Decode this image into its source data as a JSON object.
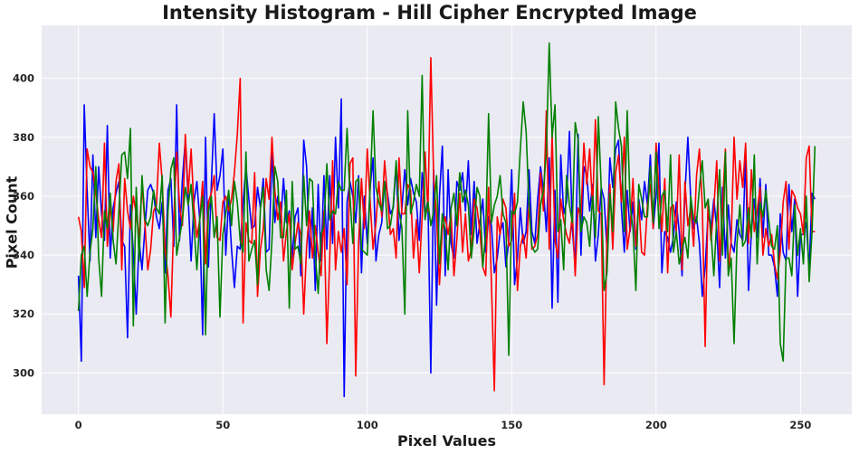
{
  "chart_data": {
    "type": "line",
    "title": "Intensity Histogram - Hill Cipher Encrypted Image",
    "xlabel": "Pixel Values",
    "ylabel": "Pixel Count",
    "xlim": [
      -12.75,
      267.75
    ],
    "ylim": [
      286,
      418
    ],
    "xticks": [
      0,
      50,
      100,
      150,
      200,
      250
    ],
    "yticks": [
      300,
      320,
      340,
      360,
      380,
      400
    ],
    "grid": true,
    "legend": "none",
    "background": "#eaeaf2",
    "x": "integers 0-255",
    "series": [
      {
        "color": "#0000ff",
        "values": [
          333,
          304,
          391,
          362,
          338,
          374,
          346,
          370,
          354,
          345,
          384,
          339,
          356,
          361,
          365,
          345,
          343,
          312,
          357,
          341,
          320,
          345,
          335,
          349,
          362,
          364,
          361,
          353,
          349,
          358,
          334,
          362,
          366,
          343,
          391,
          345,
          366,
          379,
          359,
          338,
          358,
          365,
          352,
          313,
          380,
          336,
          364,
          388,
          362,
          367,
          376,
          340,
          359,
          342,
          329,
          343,
          342,
          358,
          370,
          359,
          349,
          350,
          363,
          356,
          366,
          341,
          342,
          376,
          351,
          360,
          351,
          366,
          351,
          355,
          339,
          353,
          356,
          333,
          379,
          370,
          339,
          356,
          328,
          364,
          338,
          367,
          342,
          367,
          344,
          380,
          356,
          393,
          292,
          358,
          365,
          360,
          351,
          367,
          334,
          360,
          344,
          363,
          373,
          338,
          347,
          351,
          365,
          361,
          354,
          356,
          371,
          345,
          356,
          369,
          357,
          366,
          361,
          358,
          345,
          368,
          353,
          359,
          300,
          369,
          323,
          360,
          377,
          333,
          369,
          344,
          339,
          365,
          362,
          368,
          355,
          372,
          347,
          365,
          344,
          351,
          359,
          341,
          353,
          350,
          334,
          339,
          348,
          351,
          336,
          345,
          369,
          330,
          339,
          356,
          344,
          348,
          369,
          348,
          344,
          359,
          370,
          362,
          348,
          373,
          322,
          362,
          324,
          374,
          354,
          358,
          382,
          349,
          336,
          381,
          340,
          370,
          367,
          355,
          364,
          338,
          347,
          363,
          359,
          342,
          373,
          363,
          376,
          379,
          356,
          341,
          362,
          348,
          358,
          342,
          359,
          352,
          365,
          357,
          374,
          349,
          360,
          378,
          334,
          348,
          346,
          341,
          346,
          358,
          348,
          333,
          361,
          380,
          359,
          349,
          353,
          344,
          326,
          336,
          354,
          349,
          359,
          349,
          329,
          363,
          339,
          357,
          344,
          341,
          352,
          347,
          345,
          374,
          328,
          348,
          359,
          346,
          366,
          346,
          364,
          340,
          340,
          336,
          326,
          354,
          341,
          338,
          364,
          348,
          359,
          326,
          347,
          347,
          351,
          335,
          361,
          359
        ]
      },
      {
        "color": "#ff0000",
        "values": [
          353,
          348,
          329,
          376,
          370,
          368,
          361,
          352,
          346,
          378,
          343,
          357,
          348,
          365,
          371,
          335,
          366,
          355,
          349,
          360,
          354,
          346,
          364,
          351,
          335,
          342,
          355,
          357,
          378,
          365,
          342,
          333,
          319,
          352,
          375,
          357,
          350,
          381,
          361,
          376,
          356,
          346,
          352,
          365,
          337,
          358,
          361,
          367,
          346,
          345,
          358,
          360,
          355,
          359,
          368,
          381,
          400,
          317,
          351,
          345,
          344,
          368,
          326,
          342,
          349,
          366,
          359,
          380,
          362,
          352,
          358,
          338,
          348,
          354,
          335,
          344,
          351,
          347,
          320,
          343,
          355,
          339,
          350,
          341,
          333,
          355,
          310,
          339,
          372,
          335,
          348,
          341,
          349,
          330,
          371,
          373,
          299,
          344,
          366,
          349,
          376,
          358,
          342,
          351,
          365,
          353,
          372,
          360,
          347,
          349,
          339,
          373,
          354,
          354,
          364,
          362,
          339,
          352,
          334,
          353,
          375,
          355,
          407,
          366,
          353,
          330,
          349,
          353,
          347,
          354,
          333,
          345,
          361,
          341,
          354,
          338,
          342,
          359,
          356,
          348,
          336,
          333,
          363,
          330,
          294,
          353,
          347,
          359,
          356,
          343,
          345,
          361,
          328,
          343,
          347,
          339,
          358,
          342,
          343,
          347,
          368,
          355,
          389,
          342,
          381,
          345,
          339,
          359,
          352,
          347,
          344,
          354,
          333,
          356,
          353,
          378,
          364,
          376,
          356,
          386,
          355,
          354,
          296,
          347,
          364,
          342,
          368,
          374,
          358,
          380,
          342,
          349,
          366,
          343,
          358,
          341,
          340,
          357,
          364,
          349,
          378,
          362,
          348,
          366,
          334,
          356,
          357,
          348,
          374,
          335,
          365,
          350,
          356,
          343,
          367,
          376,
          357,
          309,
          359,
          345,
          356,
          372,
          338,
          357,
          376,
          335,
          345,
          380,
          359,
          372,
          363,
          378,
          344,
          369,
          348,
          355,
          363,
          340,
          349,
          343,
          347,
          337,
          332,
          341,
          358,
          365,
          342,
          362,
          360,
          356,
          354,
          347,
          373,
          377,
          348,
          348
        ]
      },
      {
        "color": "#008000",
        "values": [
          321,
          340,
          343,
          326,
          341,
          349,
          370,
          339,
          326,
          355,
          349,
          361,
          345,
          337,
          355,
          374,
          375,
          366,
          383,
          316,
          363,
          338,
          367,
          352,
          350,
          353,
          362,
          356,
          354,
          367,
          317,
          355,
          369,
          373,
          340,
          346,
          352,
          363,
          357,
          364,
          350,
          335,
          352,
          360,
          313,
          355,
          360,
          346,
          353,
          319,
          347,
          354,
          362,
          350,
          365,
          358,
          345,
          341,
          375,
          338,
          342,
          345,
          330,
          356,
          363,
          335,
          328,
          345,
          370,
          365,
          346,
          346,
          362,
          322,
          365,
          342,
          343,
          337,
          367,
          350,
          366,
          365,
          340,
          327,
          347,
          350,
          371,
          352,
          355,
          354,
          365,
          362,
          362,
          383,
          360,
          344,
          365,
          366,
          342,
          341,
          340,
          363,
          389,
          363,
          358,
          355,
          365,
          349,
          350,
          357,
          372,
          355,
          349,
          320,
          389,
          354,
          358,
          364,
          360,
          401,
          352,
          358,
          350,
          355,
          367,
          337,
          354,
          348,
          335,
          356,
          361,
          350,
          368,
          358,
          362,
          357,
          339,
          349,
          363,
          360,
          336,
          347,
          388,
          351,
          357,
          360,
          367,
          354,
          351,
          306,
          355,
          354,
          358,
          376,
          392,
          382,
          357,
          343,
          341,
          342,
          357,
          362,
          375,
          412,
          380,
          391,
          348,
          352,
          335,
          367,
          357,
          351,
          385,
          379,
          348,
          353,
          351,
          343,
          360,
          346,
          387,
          363,
          328,
          334,
          361,
          348,
          392,
          383,
          377,
          348,
          389,
          357,
          349,
          328,
          364,
          359,
          353,
          353,
          370,
          351,
          375,
          349,
          360,
          362,
          348,
          374,
          341,
          348,
          337,
          342,
          346,
          339,
          360,
          352,
          351,
          363,
          372,
          356,
          359,
          348,
          333,
          352,
          369,
          340,
          375,
          333,
          339,
          310,
          344,
          357,
          343,
          345,
          356,
          346,
          374,
          337,
          358,
          353,
          362,
          352,
          343,
          342,
          350,
          310,
          304,
          339,
          339,
          333,
          357,
          340,
          349,
          337,
          360,
          331,
          348,
          377
        ]
      }
    ]
  }
}
